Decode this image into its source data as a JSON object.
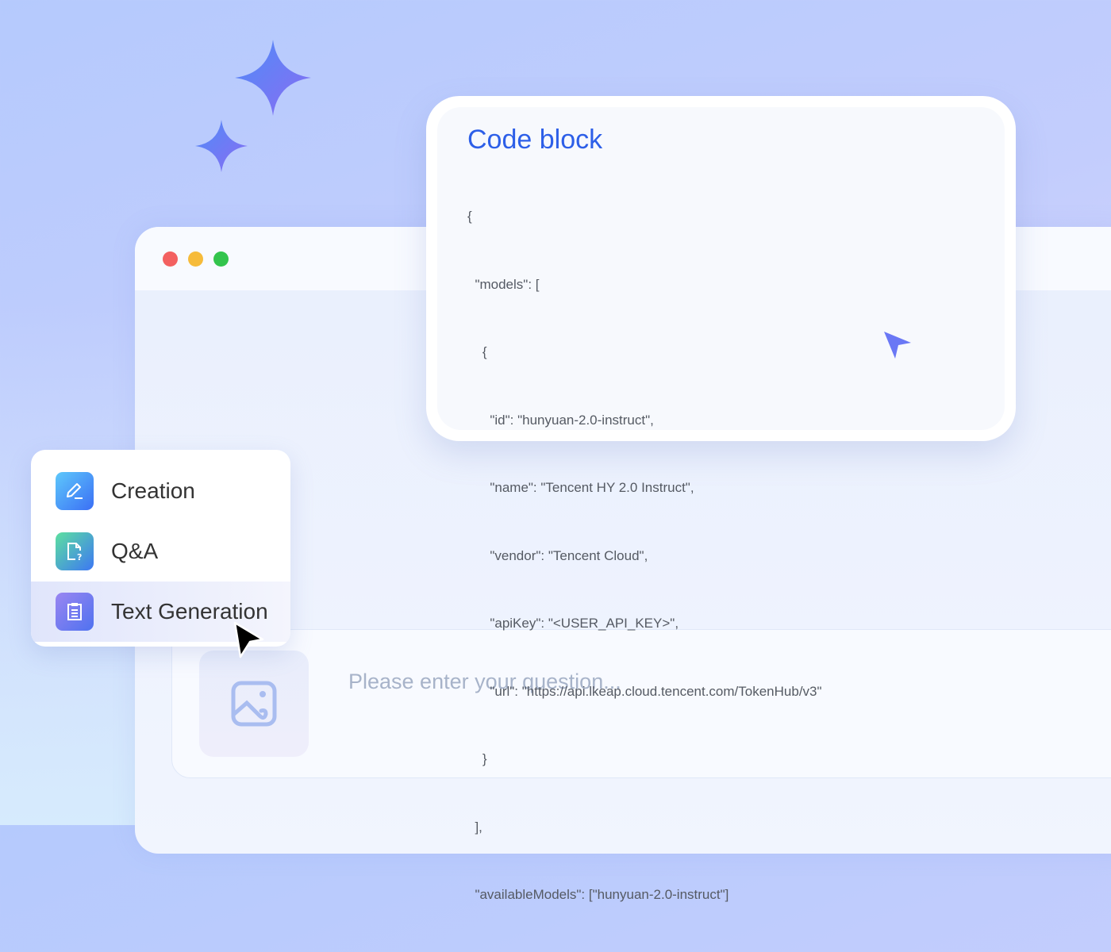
{
  "window": {
    "traffic_lights": [
      "#f36060",
      "#f6bb3a",
      "#33c44c"
    ]
  },
  "code_card": {
    "title": "Code block",
    "lines": [
      "{",
      "  \"models\": [",
      "    {",
      "      \"id\": \"hunyuan-2.0-instruct\",",
      "      \"name\": \"Tencent HY 2.0 Instruct\",",
      "      \"vendor\": \"Tencent Cloud\",",
      "      \"apiKey\": \"<USER_API_KEY>\",",
      "      \"url\": \"https://api.lkeap.cloud.tencent.com/TokenHub/v3\"",
      "    }",
      "  ],",
      "  \"availableModels\": [\"hunyuan-2.0-instruct\"]"
    ]
  },
  "menu": {
    "items": [
      {
        "label": "Creation",
        "icon": "pencil-icon"
      },
      {
        "label": "Q&A",
        "icon": "document-question-icon"
      },
      {
        "label": "Text Generation",
        "icon": "clipboard-list-icon",
        "active": true
      }
    ]
  },
  "input": {
    "placeholder": "Please enter your question...",
    "image_button_icon": "image-icon"
  },
  "colors": {
    "accent": "#2d5fe8",
    "cursor_accent": "#6a78f5"
  }
}
